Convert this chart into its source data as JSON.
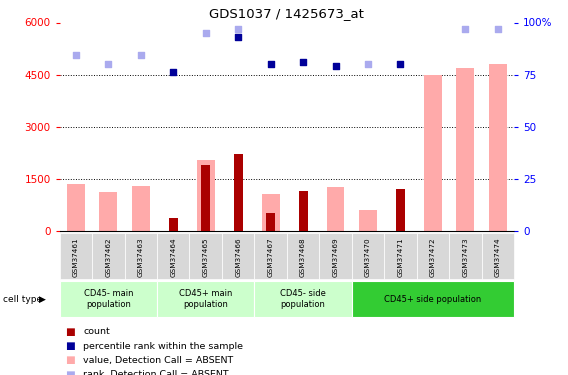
{
  "title": "GDS1037 / 1425673_at",
  "samples": [
    "GSM37461",
    "GSM37462",
    "GSM37463",
    "GSM37464",
    "GSM37465",
    "GSM37466",
    "GSM37467",
    "GSM37468",
    "GSM37469",
    "GSM37470",
    "GSM37471",
    "GSM37472",
    "GSM37473",
    "GSM37474"
  ],
  "count_values": [
    null,
    null,
    null,
    350,
    1900,
    2200,
    500,
    1150,
    null,
    null,
    1200,
    null,
    null,
    null
  ],
  "value_absent": [
    1350,
    1100,
    1300,
    null,
    2050,
    null,
    1050,
    null,
    1250,
    600,
    null,
    4500,
    4700,
    4800
  ],
  "rank_absent_left": [
    5050,
    4800,
    5050,
    null,
    5700,
    5800,
    null,
    null,
    null,
    4800,
    null,
    null,
    5800,
    5800
  ],
  "percentile_rank_right": [
    null,
    null,
    null,
    76,
    null,
    93,
    80,
    81,
    79,
    null,
    80,
    null,
    null,
    null
  ],
  "ylim_left": [
    0,
    6000
  ],
  "ylim_right": [
    0,
    100
  ],
  "yticks_left": [
    0,
    1500,
    3000,
    4500,
    6000
  ],
  "yticks_right": [
    0,
    25,
    50,
    75,
    100
  ],
  "bar_color_count": "#aa0000",
  "bar_color_value_absent": "#ffaaaa",
  "scatter_color_rank_absent": "#aaaaee",
  "scatter_color_percentile": "#000099",
  "group_colors": [
    "#ccffcc",
    "#ccffcc",
    "#ccffcc",
    "#33cc33"
  ],
  "group_labels": [
    "CD45- main\npopulation",
    "CD45+ main\npopulation",
    "CD45- side\npopulation",
    "CD45+ side population"
  ],
  "group_ranges": [
    [
      0,
      3
    ],
    [
      3,
      6
    ],
    [
      6,
      9
    ],
    [
      9,
      14
    ]
  ],
  "legend_items": [
    {
      "color": "#aa0000",
      "label": "count"
    },
    {
      "color": "#000099",
      "label": "percentile rank within the sample"
    },
    {
      "color": "#ffaaaa",
      "label": "value, Detection Call = ABSENT"
    },
    {
      "color": "#aaaaee",
      "label": "rank, Detection Call = ABSENT"
    }
  ]
}
